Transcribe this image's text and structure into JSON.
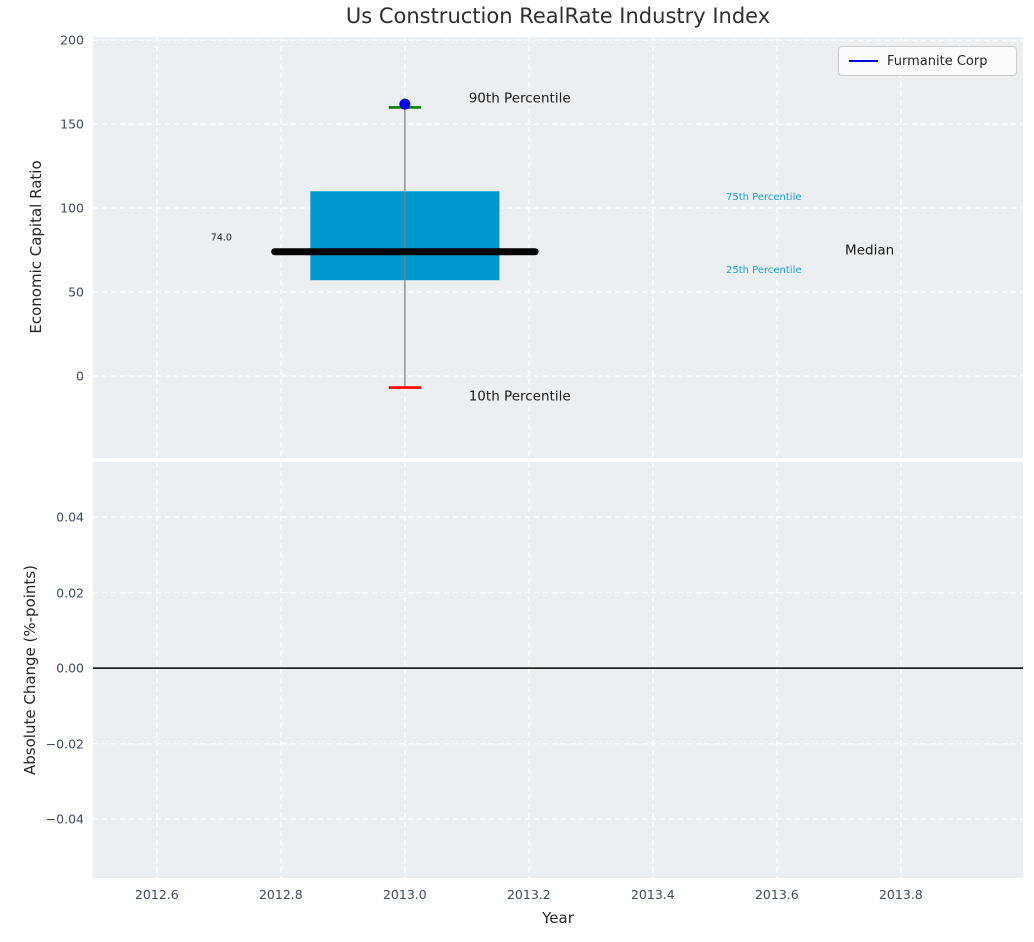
{
  "figure": {
    "title": "Us Construction RealRate Industry Index"
  },
  "colors": {
    "plot_background": "#ECEFF1",
    "grid": "#FFFFFF",
    "tick_label": "#3D4C63",
    "axis_label": "#262626",
    "title": "#2E2E2E",
    "box_fill": "#0096CE",
    "median_line": "#000000",
    "whisker": "#808080",
    "p90_cap": "#008000",
    "p10_cap": "#FF0000",
    "company_point": "#0000EE",
    "percentile_label": "#1AA0D5",
    "zero_line": "#000000"
  },
  "chart_data": [
    {
      "type": "boxplot",
      "title": "Us Construction RealRate Industry Index",
      "ylabel": "Economic Capital Ratio",
      "xlim": [
        2012.497,
        2013.997
      ],
      "ylim": [
        -49,
        202
      ],
      "grid": true,
      "xticks": {
        "values": [
          2012.6,
          2012.8,
          2013.0,
          2013.2,
          2013.4,
          2013.6,
          2013.8
        ],
        "labels": []
      },
      "yticks": {
        "values": [
          0,
          50,
          100,
          150,
          200
        ],
        "labels": [
          "0",
          "50",
          "100",
          "150",
          "200"
        ]
      },
      "legend": {
        "position": "upper right",
        "entries": [
          {
            "label": "Furmanite Corp",
            "color": "#0000EE"
          }
        ]
      },
      "box": {
        "x": 2013.0,
        "box_width": 0.305,
        "median_line_width": 0.42,
        "cap_width": 0.052,
        "percentiles": {
          "p10": -7,
          "p25": 57,
          "median": 74.0,
          "p75": 110,
          "p90": 160
        },
        "company_point": {
          "label": "Furmanite Corp",
          "x": 2013.0,
          "value": 162
        }
      },
      "annotations": [
        {
          "text": "74.0",
          "x": 2012.687,
          "y": 82,
          "size": 9.5,
          "color": "#1A1A1A"
        },
        {
          "text": "90th Percentile",
          "x": 2013.103,
          "y": 165,
          "size": 13.5,
          "color": "#1A1A1A"
        },
        {
          "text": "10th Percentile",
          "x": 2013.103,
          "y": -12.5,
          "size": 13.5,
          "color": "#1A1A1A"
        },
        {
          "text": "75th Percentile",
          "x": 2013.518,
          "y": 106,
          "size": 10,
          "color": "#1AA0D5"
        },
        {
          "text": "25th Percentile",
          "x": 2013.518,
          "y": 62.5,
          "size": 10,
          "color": "#1AA0D5"
        },
        {
          "text": "Median",
          "x": 2013.71,
          "y": 74.3,
          "size": 13.5,
          "color": "#1A1A1A"
        }
      ]
    },
    {
      "type": "line",
      "xlabel": "Year",
      "ylabel": "Absolute Change (%-points)",
      "xlim": [
        2012.497,
        2013.997
      ],
      "ylim": [
        -0.0556,
        0.0546
      ],
      "grid": true,
      "xticks": {
        "values": [
          2012.6,
          2012.8,
          2013.0,
          2013.2,
          2013.4,
          2013.6,
          2013.8
        ],
        "labels": [
          "2012.6",
          "2012.8",
          "2013.0",
          "2013.2",
          "2013.4",
          "2013.6",
          "2013.8"
        ]
      },
      "yticks": {
        "values": [
          0.04,
          0.02,
          0.0,
          -0.02,
          -0.04
        ],
        "labels": [
          "0.04",
          "0.02",
          "0.00",
          "−0.02",
          "−0.04"
        ]
      },
      "zero_line": {
        "value": 0.0
      },
      "series": []
    }
  ]
}
